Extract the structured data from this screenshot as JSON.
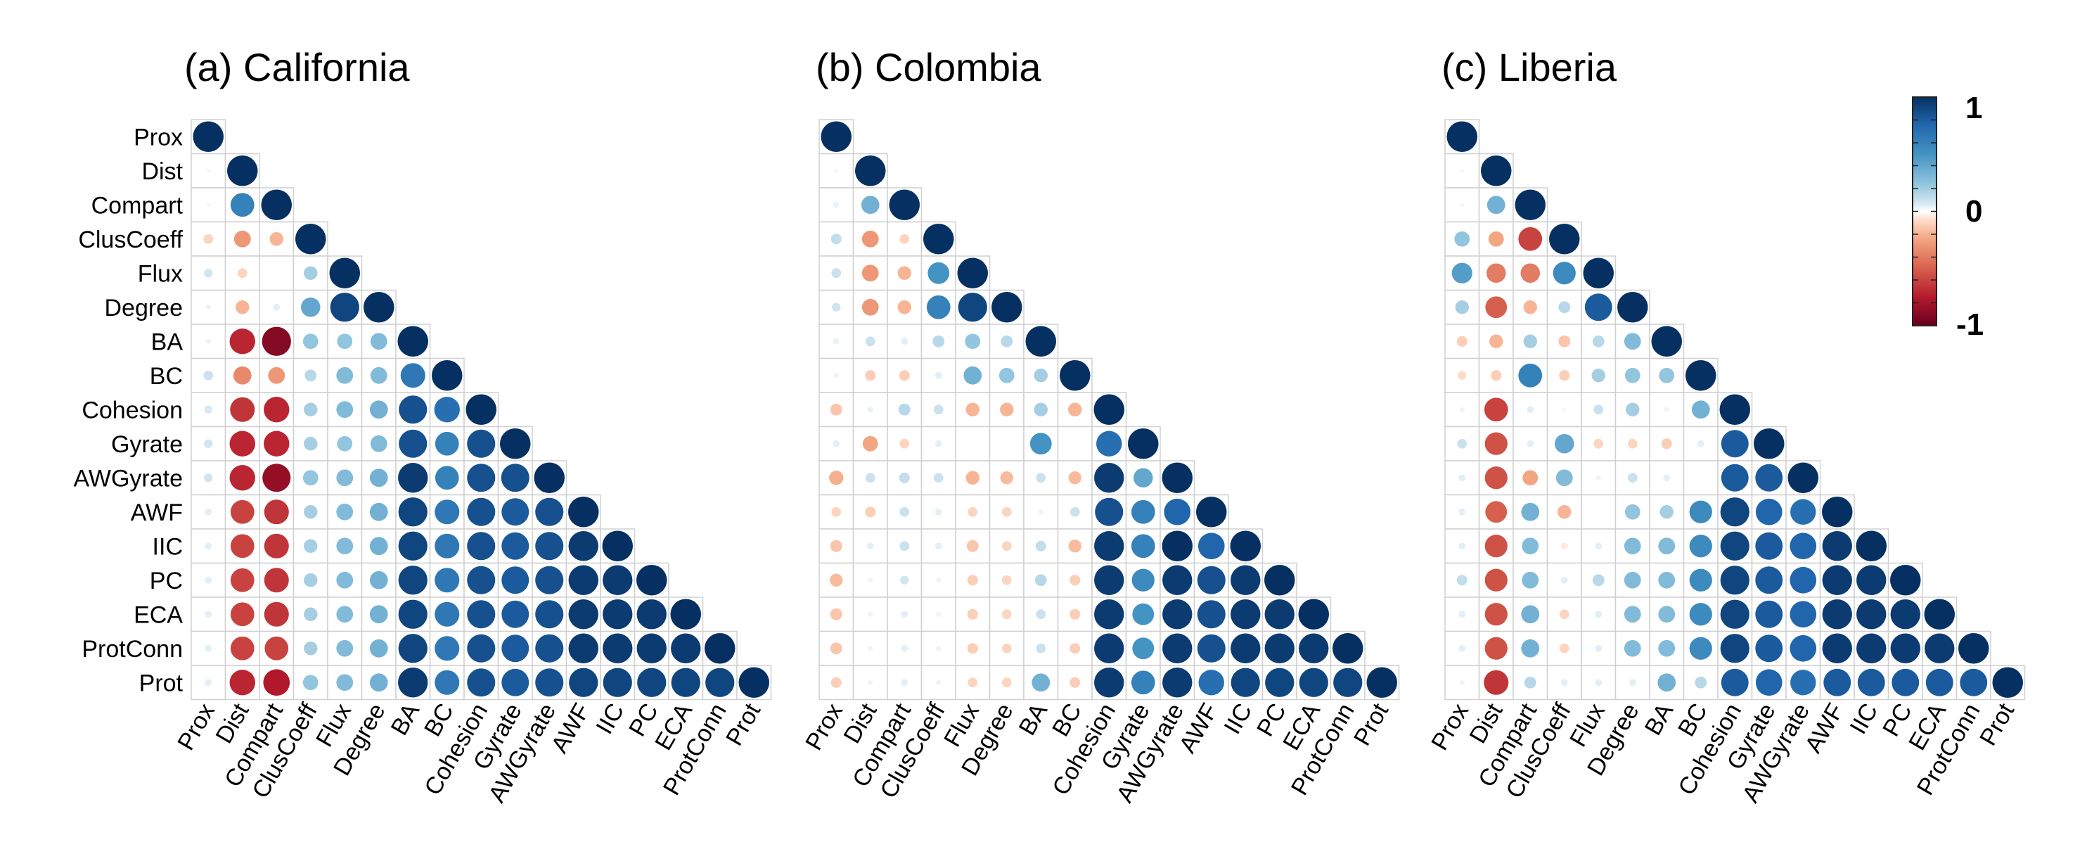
{
  "chart_data": {
    "type": "heatmap",
    "variables": [
      "Prox",
      "Dist",
      "Compart",
      "ClusCoeff",
      "Flux",
      "Degree",
      "BA",
      "BC",
      "Cohesion",
      "Gyrate",
      "AWGyrate",
      "AWF",
      "IIC",
      "PC",
      "ECA",
      "ProtConn",
      "Prot"
    ],
    "colorbar": {
      "range": [
        -1,
        1
      ],
      "tick_labels": [
        "1",
        "0",
        "-1"
      ],
      "colors": {
        "neg": "#67001f",
        "mid": "#ffffff",
        "pos": "#053061"
      }
    },
    "panels": [
      {
        "title": "(a) California",
        "lower_triangle": [
          [
            1
          ],
          [
            0.02,
            1
          ],
          [
            0.02,
            0.6,
            1
          ],
          [
            -0.1,
            -0.3,
            -0.2,
            1
          ],
          [
            0.08,
            -0.1,
            0.0,
            0.2,
            1
          ],
          [
            0.03,
            -0.2,
            0.05,
            0.4,
            0.9,
            1
          ],
          [
            0.03,
            -0.7,
            -0.9,
            0.25,
            0.25,
            0.3,
            1
          ],
          [
            0.1,
            -0.35,
            -0.3,
            0.15,
            0.3,
            0.3,
            0.65,
            1
          ],
          [
            0.07,
            -0.65,
            -0.7,
            0.2,
            0.3,
            0.35,
            0.85,
            0.7,
            1
          ],
          [
            0.08,
            -0.7,
            -0.7,
            0.2,
            0.25,
            0.3,
            0.85,
            0.6,
            0.85,
            1
          ],
          [
            0.08,
            -0.7,
            -0.85,
            0.25,
            0.3,
            0.35,
            0.95,
            0.6,
            0.85,
            0.85,
            1
          ],
          [
            0.05,
            -0.6,
            -0.65,
            0.2,
            0.3,
            0.35,
            0.9,
            0.65,
            0.85,
            0.8,
            0.85,
            1
          ],
          [
            0.05,
            -0.6,
            -0.65,
            0.2,
            0.3,
            0.35,
            0.9,
            0.65,
            0.85,
            0.8,
            0.85,
            0.95,
            1
          ],
          [
            0.05,
            -0.6,
            -0.65,
            0.2,
            0.3,
            0.35,
            0.9,
            0.65,
            0.85,
            0.8,
            0.85,
            0.95,
            0.95,
            1
          ],
          [
            0.05,
            -0.6,
            -0.65,
            0.2,
            0.3,
            0.35,
            0.9,
            0.65,
            0.85,
            0.8,
            0.85,
            0.95,
            0.95,
            0.95,
            1
          ],
          [
            0.05,
            -0.6,
            -0.6,
            0.2,
            0.3,
            0.35,
            0.9,
            0.65,
            0.85,
            0.8,
            0.85,
            0.95,
            0.95,
            0.95,
            0.95,
            1
          ],
          [
            0.05,
            -0.7,
            -0.75,
            0.25,
            0.3,
            0.35,
            0.95,
            0.65,
            0.85,
            0.8,
            0.85,
            0.9,
            0.9,
            0.9,
            0.9,
            0.9,
            1
          ]
        ]
      },
      {
        "title": "(b) Colombia",
        "lower_triangle": [
          [
            1
          ],
          [
            0.02,
            1
          ],
          [
            0.04,
            0.35,
            1
          ],
          [
            0.12,
            -0.3,
            -0.1,
            1
          ],
          [
            0.1,
            -0.3,
            -0.2,
            0.5,
            1
          ],
          [
            0.08,
            -0.3,
            -0.2,
            0.6,
            0.9,
            1
          ],
          [
            0.04,
            0.1,
            0.05,
            0.15,
            0.25,
            0.15,
            1
          ],
          [
            0.03,
            -0.12,
            -0.12,
            0.05,
            0.35,
            0.25,
            0.2,
            1
          ],
          [
            -0.15,
            0.04,
            0.15,
            0.1,
            -0.2,
            -0.2,
            0.2,
            -0.2,
            1
          ],
          [
            0.05,
            -0.25,
            -0.1,
            0.05,
            0.0,
            0.0,
            0.5,
            0.0,
            0.7,
            1
          ],
          [
            -0.22,
            0.1,
            0.12,
            0.1,
            -0.2,
            -0.18,
            0.1,
            -0.18,
            0.95,
            0.4,
            1
          ],
          [
            -0.1,
            -0.12,
            0.1,
            0.05,
            -0.1,
            -0.1,
            0.03,
            0.1,
            0.85,
            0.6,
            0.75,
            1
          ],
          [
            -0.15,
            0.05,
            0.1,
            0.05,
            -0.15,
            -0.1,
            0.12,
            -0.18,
            0.95,
            0.6,
            1.0,
            0.75,
            1
          ],
          [
            -0.18,
            0.03,
            0.08,
            0.03,
            -0.12,
            -0.1,
            0.15,
            -0.12,
            0.95,
            0.55,
            0.95,
            0.85,
            0.95,
            1
          ],
          [
            -0.15,
            0.03,
            0.05,
            0.03,
            -0.12,
            -0.1,
            0.1,
            -0.12,
            0.95,
            0.5,
            0.95,
            0.85,
            0.95,
            0.95,
            1
          ],
          [
            -0.15,
            0.03,
            0.05,
            0.03,
            -0.12,
            -0.1,
            0.1,
            -0.12,
            0.95,
            0.5,
            0.95,
            0.85,
            0.95,
            0.95,
            0.95,
            1
          ],
          [
            -0.12,
            0.03,
            0.05,
            0.03,
            -0.1,
            -0.1,
            0.35,
            -0.12,
            0.95,
            0.6,
            0.95,
            0.7,
            0.9,
            0.9,
            0.9,
            0.9,
            1
          ]
        ]
      },
      {
        "title": "(c) Liberia",
        "lower_triangle": [
          [
            1
          ],
          [
            0.02,
            1
          ],
          [
            0.02,
            0.35,
            1
          ],
          [
            0.25,
            -0.25,
            -0.6,
            1
          ],
          [
            0.45,
            -0.4,
            -0.4,
            0.55,
            1
          ],
          [
            0.2,
            -0.5,
            -0.2,
            0.15,
            0.8,
            1
          ],
          [
            -0.12,
            -0.2,
            0.2,
            -0.15,
            0.15,
            0.3,
            1
          ],
          [
            -0.08,
            -0.12,
            0.6,
            -0.12,
            0.2,
            0.25,
            0.25,
            1
          ],
          [
            0.03,
            -0.6,
            0.05,
            0.02,
            0.1,
            0.2,
            0.03,
            0.35,
            1
          ],
          [
            0.1,
            -0.55,
            0.05,
            0.4,
            -0.1,
            -0.1,
            -0.12,
            0.05,
            0.8,
            1
          ],
          [
            0.05,
            -0.55,
            -0.25,
            0.3,
            0.03,
            0.1,
            0.05,
            0.0,
            0.8,
            0.8,
            1
          ],
          [
            0.05,
            -0.5,
            0.35,
            -0.2,
            0.0,
            0.25,
            0.2,
            0.55,
            0.9,
            0.75,
            0.7,
            1
          ],
          [
            0.05,
            -0.55,
            0.3,
            -0.05,
            0.05,
            0.3,
            0.3,
            0.55,
            0.9,
            0.8,
            0.75,
            0.95,
            1
          ],
          [
            0.12,
            -0.55,
            0.3,
            0.05,
            0.15,
            0.3,
            0.3,
            0.55,
            0.9,
            0.8,
            0.75,
            0.95,
            0.95,
            1
          ],
          [
            0.05,
            -0.55,
            0.35,
            -0.1,
            0.05,
            0.3,
            0.3,
            0.55,
            0.9,
            0.8,
            0.75,
            0.95,
            0.95,
            0.95,
            1
          ],
          [
            0.05,
            -0.55,
            0.35,
            -0.1,
            0.05,
            0.3,
            0.3,
            0.55,
            0.9,
            0.8,
            0.75,
            0.95,
            0.95,
            0.95,
            0.95,
            1
          ],
          [
            0.03,
            -0.65,
            0.15,
            0.05,
            0.05,
            0.05,
            0.35,
            0.15,
            0.8,
            0.75,
            0.7,
            0.8,
            0.8,
            0.8,
            0.8,
            0.8,
            1
          ]
        ]
      }
    ]
  }
}
